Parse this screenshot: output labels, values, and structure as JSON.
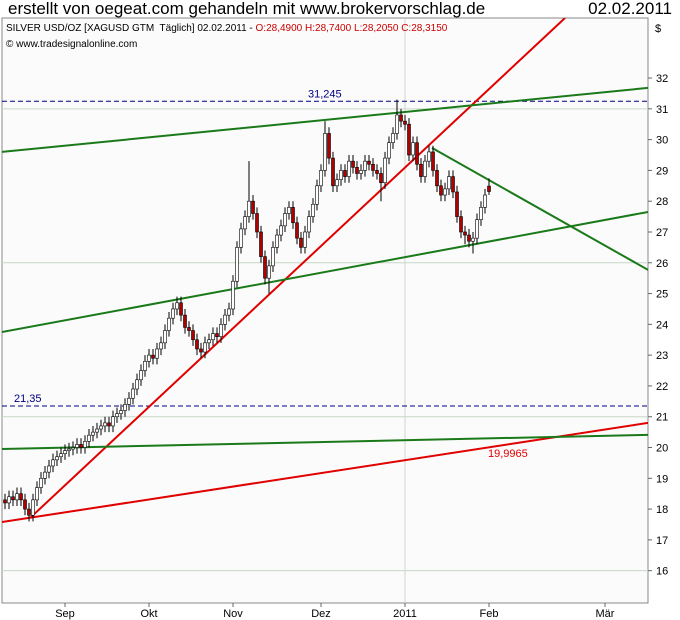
{
  "chart_data": {
    "type": "candlestick",
    "title": "erstellt von oegeat.com gehandeln mit www.brokervorschlag.de",
    "date": "02.02.2011",
    "instrument": "SILVER USD/OZ [XAGUSD GTM  Täglich] 02.02.2011 - ",
    "ohlc_label": "O:28,4900 H:28,7400 L:28,2050 C:28,3150",
    "source": "© www.tradesignalonline.com",
    "y_unit": "$",
    "up_color": "#ffffff",
    "down_color": "#b00000",
    "ohlc_color": "#cc0000",
    "open": [
      18.3,
      18.2,
      18.4,
      18.3,
      18.5,
      18.3,
      18.0,
      17.8,
      18.3,
      18.7,
      19.0,
      19.2,
      19.4,
      19.6,
      19.7,
      19.8,
      19.9,
      19.95,
      20.0,
      20.1,
      20.0,
      20.2,
      20.4,
      20.5,
      20.6,
      20.7,
      20.8,
      20.7,
      21.0,
      21.1,
      21.2,
      21.4,
      21.6,
      21.9,
      22.2,
      22.5,
      22.8,
      23.0,
      22.9,
      23.2,
      23.4,
      23.8,
      24.2,
      24.5,
      24.7,
      24.3,
      23.9,
      23.8,
      23.5,
      23.2,
      23.1,
      23.4,
      23.5,
      23.7,
      23.6,
      24.0,
      24.3,
      24.5,
      25.4,
      26.5,
      27.1,
      27.5,
      28.0,
      27.6,
      27.0,
      26.2,
      25.5,
      25.9,
      26.5,
      26.9,
      27.2,
      27.6,
      27.8,
      27.3,
      26.8,
      26.5,
      27.0,
      27.5,
      27.9,
      28.5,
      29.0,
      30.2,
      29.4,
      28.5,
      28.7,
      29.0,
      28.8,
      29.3,
      29.1,
      28.9,
      29.0,
      29.3,
      29.2,
      29.0,
      28.9,
      28.6,
      29.4,
      29.9,
      30.2,
      30.8,
      30.6,
      30.5,
      29.5,
      29.9,
      29.2,
      28.8,
      29.3,
      29.6,
      29.0,
      28.5,
      28.2,
      28.4,
      28.8,
      28.3,
      27.5,
      27.0,
      26.9,
      26.7,
      26.8,
      27.4,
      27.8,
      28.49
    ],
    "high": [
      18.5,
      18.6,
      18.6,
      18.7,
      18.7,
      18.5,
      18.2,
      18.5,
      18.9,
      19.2,
      19.4,
      19.6,
      19.8,
      19.9,
      20.0,
      20.1,
      20.15,
      20.2,
      20.3,
      20.3,
      20.4,
      20.6,
      20.7,
      20.8,
      20.9,
      21.0,
      21.0,
      21.2,
      21.3,
      21.4,
      21.6,
      21.8,
      22.1,
      22.4,
      22.7,
      23.0,
      23.2,
      23.2,
      23.4,
      23.6,
      24.0,
      24.4,
      24.7,
      24.9,
      24.9,
      24.5,
      24.1,
      24.0,
      23.7,
      23.4,
      23.6,
      23.7,
      23.9,
      23.9,
      24.2,
      24.5,
      24.7,
      25.6,
      26.7,
      27.3,
      27.7,
      29.3,
      28.2,
      27.8,
      27.2,
      26.4,
      26.1,
      26.7,
      27.1,
      27.4,
      27.8,
      28.0,
      28.0,
      27.5,
      27.0,
      27.2,
      27.7,
      28.1,
      28.7,
      29.2,
      30.6,
      30.4,
      29.6,
      28.9,
      29.2,
      29.2,
      29.5,
      29.5,
      29.3,
      29.2,
      29.5,
      29.5,
      29.4,
      29.2,
      29.1,
      29.6,
      30.1,
      30.4,
      31.3,
      31.0,
      30.8,
      30.7,
      30.1,
      30.1,
      29.4,
      29.5,
      29.8,
      29.8,
      29.2,
      28.7,
      28.6,
      29.0,
      29.0,
      28.5,
      27.7,
      27.2,
      27.1,
      27.0,
      27.6,
      28.0,
      28.4,
      28.74
    ],
    "low": [
      18.0,
      18.0,
      18.1,
      18.1,
      18.1,
      17.8,
      17.6,
      17.6,
      18.1,
      18.5,
      18.8,
      19.0,
      19.2,
      19.4,
      19.5,
      19.6,
      19.7,
      19.75,
      19.8,
      19.8,
      19.8,
      20.0,
      20.2,
      20.3,
      20.4,
      20.5,
      20.5,
      20.5,
      20.8,
      20.9,
      21.0,
      21.2,
      21.4,
      21.7,
      22.0,
      22.3,
      22.6,
      22.7,
      22.7,
      23.0,
      23.2,
      23.6,
      24.0,
      24.3,
      24.1,
      23.7,
      23.6,
      23.3,
      23.0,
      22.9,
      22.9,
      23.2,
      23.3,
      23.4,
      23.4,
      23.8,
      24.1,
      24.3,
      25.2,
      26.3,
      26.9,
      27.3,
      27.4,
      26.8,
      26.0,
      25.3,
      25.0,
      25.7,
      26.3,
      26.7,
      27.0,
      27.4,
      27.1,
      26.6,
      26.3,
      26.3,
      26.8,
      27.3,
      27.7,
      28.3,
      28.8,
      29.2,
      28.3,
      28.3,
      28.5,
      28.6,
      28.6,
      28.9,
      28.7,
      28.7,
      28.8,
      29.0,
      28.8,
      28.7,
      28.0,
      28.4,
      29.2,
      29.7,
      30.0,
      30.4,
      30.3,
      29.3,
      29.3,
      29.0,
      28.6,
      28.6,
      29.1,
      28.8,
      28.3,
      28.0,
      28.0,
      28.2,
      28.1,
      27.3,
      26.8,
      26.6,
      26.5,
      26.3,
      26.6,
      27.2,
      27.6,
      28.205
    ],
    "close": [
      18.2,
      18.4,
      18.3,
      18.5,
      18.3,
      18.0,
      17.8,
      18.3,
      18.7,
      19.0,
      19.2,
      19.4,
      19.6,
      19.7,
      19.8,
      19.9,
      19.95,
      20.0,
      20.1,
      20.0,
      20.2,
      20.4,
      20.5,
      20.6,
      20.7,
      20.8,
      20.7,
      21.0,
      21.1,
      21.2,
      21.4,
      21.6,
      21.9,
      22.2,
      22.5,
      22.8,
      23.0,
      22.9,
      23.2,
      23.4,
      23.8,
      24.2,
      24.5,
      24.7,
      24.3,
      23.9,
      23.8,
      23.5,
      23.2,
      23.1,
      23.4,
      23.5,
      23.7,
      23.6,
      24.0,
      24.3,
      24.5,
      25.4,
      26.5,
      27.1,
      27.5,
      28.0,
      27.6,
      27.0,
      26.2,
      25.5,
      25.9,
      26.5,
      26.9,
      27.2,
      27.6,
      27.8,
      27.3,
      26.8,
      26.5,
      27.0,
      27.5,
      27.9,
      28.5,
      29.0,
      30.2,
      29.4,
      28.5,
      28.7,
      29.0,
      28.8,
      29.3,
      29.1,
      28.9,
      29.0,
      29.3,
      29.2,
      29.0,
      28.9,
      28.6,
      29.4,
      29.9,
      30.2,
      30.8,
      30.6,
      30.5,
      29.5,
      29.9,
      29.2,
      28.8,
      29.3,
      29.6,
      29.0,
      28.5,
      28.2,
      28.4,
      28.8,
      28.3,
      27.5,
      27.0,
      26.9,
      26.7,
      26.8,
      27.4,
      27.8,
      28.2,
      28.315
    ],
    "xlim": [
      -0.75,
      160.75
    ],
    "xticks": [
      {
        "value": 15,
        "label": "Sep"
      },
      {
        "value": 36,
        "label": "Okt"
      },
      {
        "value": 57,
        "label": "Nov"
      },
      {
        "value": 79,
        "label": "Dez"
      },
      {
        "value": 100,
        "label": "2011",
        "grid": true
      },
      {
        "value": 121,
        "label": "Feb"
      },
      {
        "value": 150,
        "label": "Mär"
      }
    ],
    "ylim": [
      14.95,
      33.95
    ],
    "yticks": [
      16,
      17,
      18,
      19,
      20,
      21,
      22,
      23,
      24,
      25,
      26,
      27,
      28,
      29,
      30,
      31,
      32
    ],
    "ygrid": [
      16,
      21,
      26,
      31
    ],
    "levels": [
      {
        "value": 31.245,
        "label": "31,245",
        "color": "#000080"
      },
      {
        "value": 21.35,
        "label": "21,35",
        "color": "#000080"
      }
    ],
    "trendlines": [
      {
        "color": "#e00000",
        "from": [
          6.25,
          17.71
        ],
        "to": [
          140,
          33.95
        ]
      },
      {
        "color": "#e00000",
        "from": [
          -0.75,
          17.58
        ],
        "to": [
          160.75,
          20.8
        ],
        "label": "19,9965"
      },
      {
        "color": "#1a7a1a",
        "from": [
          -0.75,
          29.6
        ],
        "to": [
          160.75,
          31.68
        ]
      },
      {
        "color": "#1a7a1a",
        "from": [
          -0.75,
          23.75
        ],
        "to": [
          160.75,
          27.65
        ]
      },
      {
        "color": "#1a7a1a",
        "from": [
          -0.75,
          19.95
        ],
        "to": [
          160.75,
          20.41
        ]
      },
      {
        "color": "#1a7a1a",
        "from": [
          106.75,
          29.73
        ],
        "to": [
          160.75,
          25.77
        ]
      }
    ]
  }
}
